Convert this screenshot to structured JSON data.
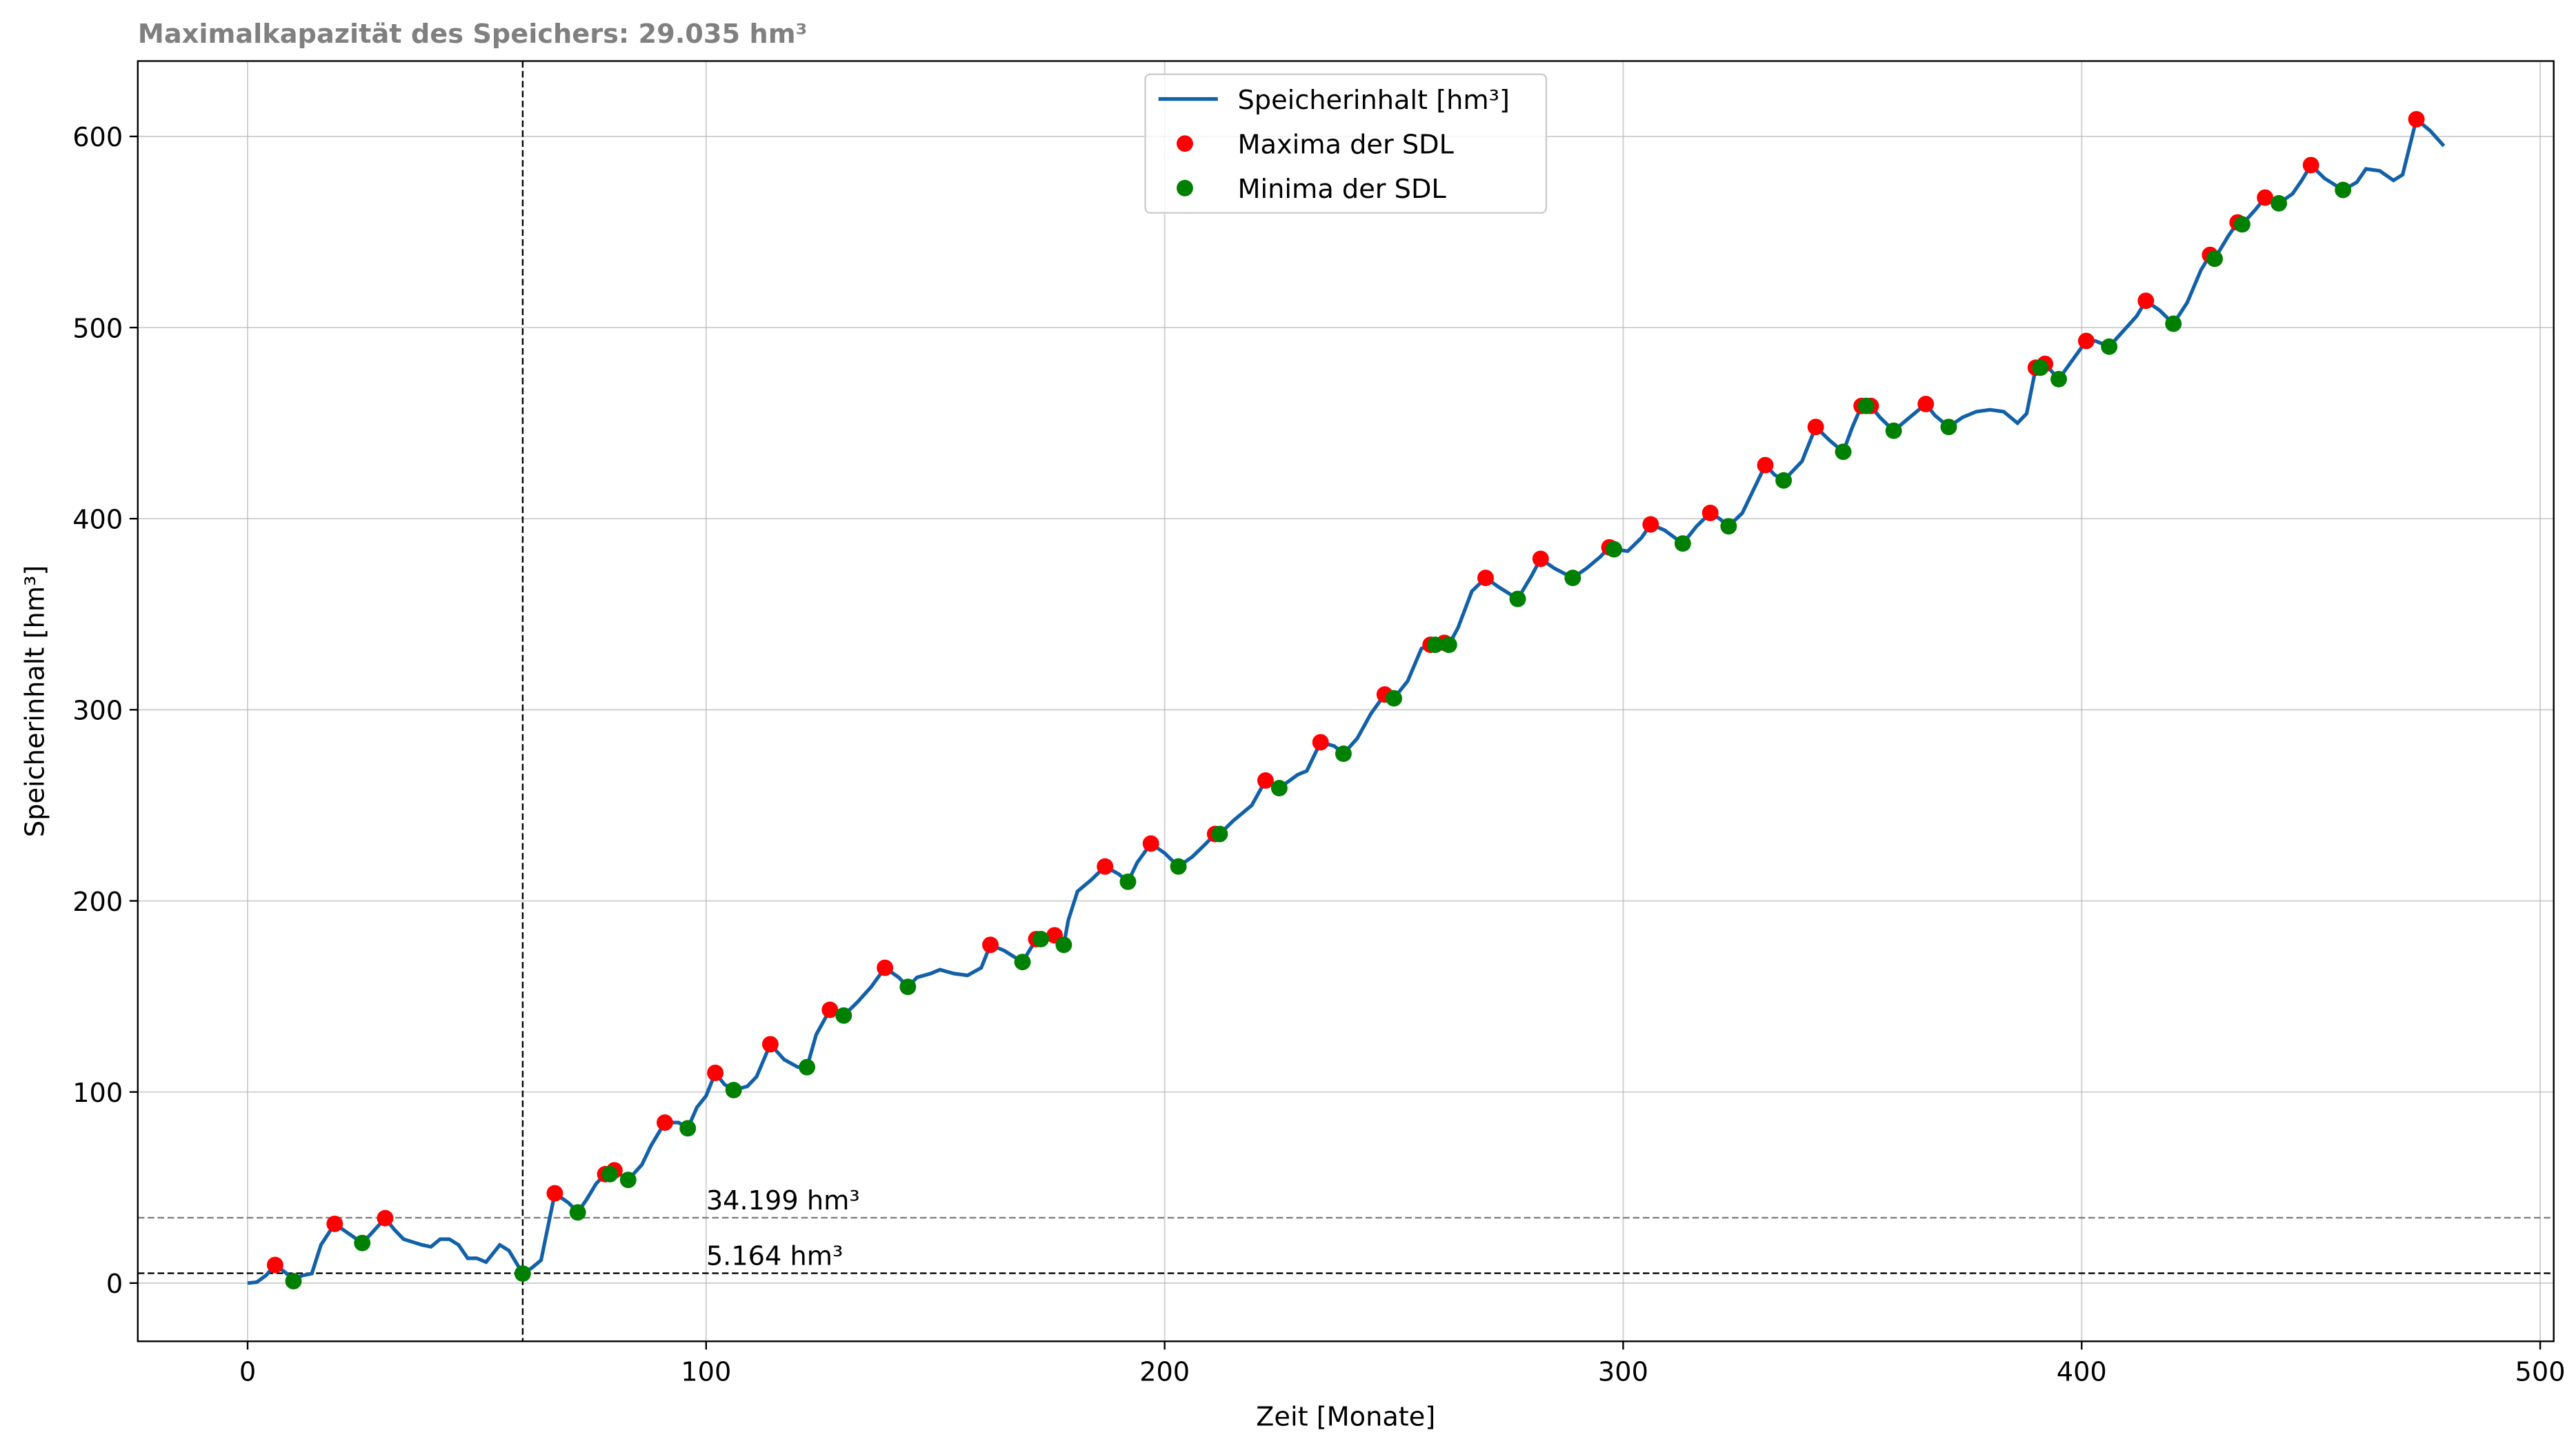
{
  "chart_data": {
    "type": "line",
    "title": "Maximalkapazität des Speichers: 29.035 hm³",
    "xlabel": "Zeit [Monate]",
    "ylabel": "Speicherinhalt [hm³]",
    "xlim": [
      -23.95,
      502.95
    ],
    "ylim": [
      -30.45,
      639.45
    ],
    "xticks": [
      0,
      100,
      200,
      300,
      400,
      500
    ],
    "yticks": [
      0,
      100,
      200,
      300,
      400,
      500,
      600
    ],
    "grid": true,
    "legend": "upper center",
    "series": [
      {
        "name": "Speicherinhalt [hm³]",
        "type": "line",
        "color": "#1261a8",
        "x": [
          0,
          2,
          4,
          6,
          8,
          10,
          12,
          14,
          16,
          19,
          22,
          25,
          27,
          30,
          32,
          34,
          38,
          40,
          42,
          44,
          46,
          48,
          50,
          52,
          55,
          57,
          60,
          62,
          64,
          67,
          70,
          72,
          74,
          76,
          78,
          80,
          83,
          86,
          88,
          91,
          94,
          96,
          98,
          100,
          102,
          104,
          106,
          109,
          111,
          114,
          117,
          120,
          122,
          124,
          127,
          129,
          130,
          133,
          136,
          139,
          142,
          144,
          146,
          149,
          151,
          154,
          157,
          160,
          162,
          165,
          169,
          171,
          173,
          176,
          178,
          179,
          181,
          184,
          187,
          190,
          192,
          194,
          197,
          200,
          203,
          206,
          209,
          211,
          212,
          215,
          219,
          222,
          224,
          225,
          229,
          231,
          234,
          237,
          239,
          242,
          245,
          248,
          250,
          253,
          256,
          258,
          261,
          262,
          264,
          267,
          270,
          273,
          277,
          280,
          282,
          285,
          289,
          292,
          295,
          297,
          298,
          301,
          304,
          306,
          309,
          313,
          316,
          319,
          321,
          323,
          326,
          329,
          331,
          333,
          335,
          337,
          339,
          342,
          345,
          348,
          350,
          352,
          354,
          356,
          359,
          362,
          366,
          368,
          371,
          374,
          377,
          380,
          383,
          386,
          388,
          390,
          392,
          395,
          398,
          401,
          403,
          406,
          409,
          412,
          414,
          417,
          420,
          423,
          426,
          428,
          429,
          432,
          434,
          435,
          438,
          440,
          443,
          446,
          448,
          450,
          453,
          457,
          460,
          462,
          465,
          468,
          470,
          473,
          476,
          479
        ],
        "values": [
          0,
          0.5,
          4,
          9.5,
          6,
          2,
          4,
          5,
          20,
          31,
          26,
          21,
          26,
          34,
          28,
          23,
          20,
          19,
          23,
          23,
          20,
          13,
          13,
          11,
          20,
          17,
          5,
          8,
          12,
          47,
          42,
          37,
          44,
          52,
          57,
          59,
          54,
          62,
          72,
          84,
          84,
          81,
          92,
          98,
          110,
          104,
          101,
          103,
          108,
          125,
          117,
          113,
          113,
          130,
          143,
          142,
          140,
          147,
          155,
          165,
          160,
          155,
          160,
          162,
          164,
          162,
          161,
          165,
          177,
          174,
          168,
          176,
          180,
          182,
          177,
          190,
          205,
          211,
          218,
          214,
          210,
          220,
          230,
          225,
          218,
          223,
          230,
          235,
          235,
          242,
          250,
          263,
          261,
          259,
          266,
          268,
          283,
          281,
          277,
          285,
          298,
          308,
          306,
          315,
          332,
          334,
          335,
          334,
          343,
          362,
          369,
          364,
          358,
          370,
          379,
          374,
          369,
          374,
          380,
          385,
          384,
          383,
          390,
          397,
          394,
          387,
          396,
          403,
          400,
          396,
          403,
          418,
          428,
          423,
          420,
          425,
          430,
          448,
          441,
          435,
          448,
          459,
          459,
          453,
          446,
          452,
          460,
          454,
          448,
          453,
          456,
          457,
          456,
          450,
          455,
          479,
          481,
          473,
          483,
          493,
          493,
          490,
          498,
          506,
          514,
          509,
          502,
          513,
          530,
          538,
          536,
          548,
          555,
          554,
          562,
          568,
          565,
          570,
          577,
          585,
          578,
          572,
          576,
          583,
          582,
          577,
          580,
          609,
          603,
          595
        ]
      },
      {
        "name": "Maxima der SDL",
        "type": "scatter",
        "color": "red",
        "x": [
          6,
          19,
          30,
          67,
          78,
          80,
          91,
          102,
          114,
          127,
          139,
          162,
          172,
          176,
          187,
          197,
          211,
          222,
          234,
          248,
          258,
          261,
          270,
          282,
          297,
          306,
          319,
          331,
          342,
          352,
          354,
          366,
          390,
          392,
          401,
          414,
          428,
          434,
          440,
          450,
          473
        ],
        "values": [
          9.5,
          31,
          34,
          47,
          57,
          59,
          84,
          110,
          125,
          143,
          165,
          177,
          180,
          182,
          218,
          230,
          235,
          263,
          283,
          308,
          334,
          335,
          369,
          379,
          385,
          397,
          403,
          428,
          448,
          459,
          459,
          460,
          479,
          481,
          493,
          514,
          538,
          555,
          568,
          585,
          609
        ]
      },
      {
        "name": "Minima der SDL",
        "type": "scatter",
        "color": "green",
        "x": [
          10,
          25,
          60,
          72,
          79,
          83,
          96,
          106,
          122,
          130,
          144,
          169,
          173,
          178,
          192,
          203,
          212,
          225,
          239,
          250,
          259,
          262,
          277,
          289,
          298,
          313,
          323,
          335,
          348,
          353,
          359,
          371,
          391,
          395,
          406,
          420,
          429,
          435,
          443,
          457
        ],
        "values": [
          1,
          21,
          5,
          37,
          57,
          54,
          81,
          101,
          113,
          140,
          155,
          168,
          180,
          177,
          210,
          218,
          235,
          259,
          277,
          306,
          334,
          334,
          358,
          369,
          384,
          387,
          396,
          420,
          435,
          459,
          446,
          448,
          479,
          473,
          490,
          502,
          536,
          554,
          565,
          572
        ]
      }
    ],
    "hlines": [
      {
        "value": 34.199,
        "label": "34.199 hm³",
        "color": "gray"
      },
      {
        "value": 5.164,
        "label": "5.164 hm³",
        "color": "black"
      }
    ],
    "vlines": [
      {
        "value": 60,
        "color": "black"
      }
    ]
  }
}
